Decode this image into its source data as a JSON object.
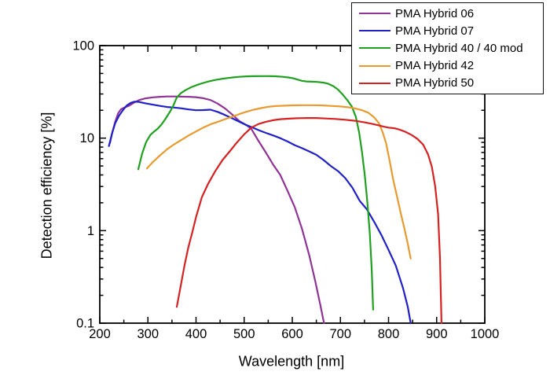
{
  "chart_data": {
    "type": "line",
    "title": "",
    "xlabel": "Wavelength [nm]",
    "ylabel": "Detection efficiency [%]",
    "grid": false,
    "legend_position": "top-right",
    "x_axis": {
      "scale": "linear",
      "min": 200,
      "max": 1000,
      "major_ticks": [
        200,
        300,
        400,
        500,
        600,
        700,
        800,
        900,
        1000
      ],
      "minor_ticks": [
        250,
        350,
        450,
        550,
        650,
        750,
        850,
        950
      ]
    },
    "y_axis": {
      "scale": "log",
      "min": 0.1,
      "max": 100,
      "major_ticks": [
        100,
        10,
        1,
        0.1
      ],
      "major_tick_labels": [
        "100",
        "10",
        "1",
        "0.1"
      ]
    },
    "series": [
      {
        "name": "PMA Hybrid 06",
        "color": "#8F3396",
        "points": [
          [
            221,
            8.8
          ],
          [
            226,
            11.5
          ],
          [
            232,
            15
          ],
          [
            238,
            18.5
          ],
          [
            244,
            20.5
          ],
          [
            252,
            21.5
          ],
          [
            260,
            22.3
          ],
          [
            270,
            24
          ],
          [
            282,
            25.8
          ],
          [
            295,
            26.9
          ],
          [
            310,
            27.6
          ],
          [
            325,
            28
          ],
          [
            340,
            28.2
          ],
          [
            355,
            28.2
          ],
          [
            370,
            28.1
          ],
          [
            385,
            28
          ],
          [
            400,
            27.7
          ],
          [
            415,
            27
          ],
          [
            430,
            25.8
          ],
          [
            445,
            23.6
          ],
          [
            460,
            21
          ],
          [
            475,
            18
          ],
          [
            490,
            15.3
          ],
          [
            505,
            13.8
          ],
          [
            515,
            12.6
          ],
          [
            530,
            9.3
          ],
          [
            545,
            7
          ],
          [
            560,
            5.2
          ],
          [
            575,
            4
          ],
          [
            590,
            2.7
          ],
          [
            605,
            1.8
          ],
          [
            620,
            1.05
          ],
          [
            635,
            0.55
          ],
          [
            648,
            0.28
          ],
          [
            658,
            0.16
          ],
          [
            666,
            0.1
          ]
        ]
      },
      {
        "name": "PMA Hybrid 07",
        "color": "#2020C8",
        "points": [
          [
            219,
            8.2
          ],
          [
            225,
            11
          ],
          [
            232,
            14.5
          ],
          [
            240,
            17.5
          ],
          [
            248,
            20
          ],
          [
            256,
            22.5
          ],
          [
            264,
            24
          ],
          [
            272,
            24.8
          ],
          [
            282,
            24.6
          ],
          [
            295,
            23.8
          ],
          [
            310,
            23
          ],
          [
            325,
            22.3
          ],
          [
            340,
            21.7
          ],
          [
            355,
            21.4
          ],
          [
            370,
            21
          ],
          [
            385,
            20.4
          ],
          [
            400,
            20
          ],
          [
            415,
            20.1
          ],
          [
            430,
            20.3
          ],
          [
            445,
            19.2
          ],
          [
            460,
            17.8
          ],
          [
            475,
            16.4
          ],
          [
            490,
            15
          ],
          [
            505,
            13.8
          ],
          [
            515,
            13.2
          ],
          [
            530,
            12.2
          ],
          [
            545,
            11.4
          ],
          [
            560,
            10.7
          ],
          [
            575,
            10
          ],
          [
            590,
            9.2
          ],
          [
            605,
            8.4
          ],
          [
            620,
            7.8
          ],
          [
            635,
            7.2
          ],
          [
            650,
            6.6
          ],
          [
            665,
            5.8
          ],
          [
            680,
            5
          ],
          [
            695,
            4.4
          ],
          [
            710,
            3.7
          ],
          [
            725,
            2.9
          ],
          [
            740,
            2.1
          ],
          [
            755,
            1.7
          ],
          [
            770,
            1.25
          ],
          [
            785,
            0.9
          ],
          [
            800,
            0.62
          ],
          [
            815,
            0.42
          ],
          [
            830,
            0.24
          ],
          [
            840,
            0.15
          ],
          [
            846,
            0.1
          ]
        ]
      },
      {
        "name": "PMA Hybrid 40 / 40 mod",
        "color": "#1FA01F",
        "points": [
          [
            280,
            4.6
          ],
          [
            288,
            6.8
          ],
          [
            296,
            9
          ],
          [
            305,
            10.8
          ],
          [
            313,
            11.8
          ],
          [
            320,
            12.6
          ],
          [
            328,
            14
          ],
          [
            336,
            16
          ],
          [
            345,
            19
          ],
          [
            352,
            22
          ],
          [
            360,
            27.5
          ],
          [
            368,
            30.5
          ],
          [
            378,
            33
          ],
          [
            390,
            35.5
          ],
          [
            402,
            37.5
          ],
          [
            415,
            39.5
          ],
          [
            428,
            41.2
          ],
          [
            440,
            42.5
          ],
          [
            452,
            43.6
          ],
          [
            465,
            44.6
          ],
          [
            478,
            45.4
          ],
          [
            490,
            46
          ],
          [
            505,
            46.5
          ],
          [
            520,
            46.7
          ],
          [
            535,
            46.8
          ],
          [
            550,
            46.8
          ],
          [
            565,
            46.6
          ],
          [
            580,
            46
          ],
          [
            592,
            45.3
          ],
          [
            602,
            44.3
          ],
          [
            612,
            42.8
          ],
          [
            620,
            41.6
          ],
          [
            630,
            41
          ],
          [
            642,
            40.7
          ],
          [
            654,
            40.4
          ],
          [
            665,
            39.8
          ],
          [
            675,
            38.6
          ],
          [
            685,
            36.5
          ],
          [
            695,
            33.5
          ],
          [
            705,
            29.5
          ],
          [
            715,
            25.5
          ],
          [
            724,
            21.8
          ],
          [
            732,
            17
          ],
          [
            739,
            11.5
          ],
          [
            745,
            7
          ],
          [
            751,
            3.8
          ],
          [
            756,
            2
          ],
          [
            761,
            0.95
          ],
          [
            765,
            0.38
          ],
          [
            768,
            0.14
          ]
        ]
      },
      {
        "name": "PMA Hybrid 42",
        "color": "#E89A2F",
        "points": [
          [
            298,
            4.7
          ],
          [
            310,
            5.5
          ],
          [
            325,
            6.5
          ],
          [
            340,
            7.6
          ],
          [
            355,
            8.6
          ],
          [
            370,
            9.6
          ],
          [
            385,
            10.7
          ],
          [
            400,
            11.8
          ],
          [
            415,
            13
          ],
          [
            430,
            14.1
          ],
          [
            445,
            15
          ],
          [
            460,
            16
          ],
          [
            475,
            17
          ],
          [
            490,
            18.2
          ],
          [
            505,
            19.3
          ],
          [
            520,
            20.3
          ],
          [
            535,
            21.1
          ],
          [
            550,
            21.8
          ],
          [
            565,
            22.2
          ],
          [
            580,
            22.4
          ],
          [
            600,
            22.6
          ],
          [
            620,
            22.7
          ],
          [
            640,
            22.7
          ],
          [
            660,
            22.6
          ],
          [
            680,
            22.3
          ],
          [
            700,
            22
          ],
          [
            715,
            21.6
          ],
          [
            730,
            21
          ],
          [
            745,
            20
          ],
          [
            758,
            18.8
          ],
          [
            770,
            16.8
          ],
          [
            780,
            14.5
          ],
          [
            788,
            11.5
          ],
          [
            795,
            8.8
          ],
          [
            802,
            5.8
          ],
          [
            810,
            3.5
          ],
          [
            818,
            2.3
          ],
          [
            826,
            1.5
          ],
          [
            834,
            1
          ],
          [
            840,
            0.72
          ],
          [
            846,
            0.5
          ]
        ]
      },
      {
        "name": "PMA Hybrid 50",
        "color": "#D52221",
        "points": [
          [
            360,
            0.15
          ],
          [
            368,
            0.25
          ],
          [
            376,
            0.42
          ],
          [
            384,
            0.66
          ],
          [
            392,
            0.95
          ],
          [
            400,
            1.4
          ],
          [
            412,
            2.3
          ],
          [
            425,
            3.2
          ],
          [
            440,
            4.4
          ],
          [
            455,
            5.8
          ],
          [
            470,
            7.2
          ],
          [
            485,
            9
          ],
          [
            500,
            11
          ],
          [
            515,
            13
          ],
          [
            530,
            14.2
          ],
          [
            545,
            15
          ],
          [
            560,
            15.6
          ],
          [
            575,
            16
          ],
          [
            590,
            16.2
          ],
          [
            610,
            16.4
          ],
          [
            630,
            16.5
          ],
          [
            650,
            16.5
          ],
          [
            670,
            16.3
          ],
          [
            690,
            16.1
          ],
          [
            710,
            15.8
          ],
          [
            730,
            15.4
          ],
          [
            750,
            14.8
          ],
          [
            765,
            14.3
          ],
          [
            778,
            13.8
          ],
          [
            790,
            13.3
          ],
          [
            800,
            13
          ],
          [
            812,
            12.8
          ],
          [
            822,
            12.4
          ],
          [
            835,
            11.7
          ],
          [
            848,
            10.8
          ],
          [
            860,
            9.8
          ],
          [
            872,
            8.5
          ],
          [
            882,
            6.7
          ],
          [
            890,
            4.9
          ],
          [
            897,
            3
          ],
          [
            903,
            1.5
          ],
          [
            907,
            0.5
          ],
          [
            910,
            0.1
          ]
        ]
      }
    ]
  }
}
